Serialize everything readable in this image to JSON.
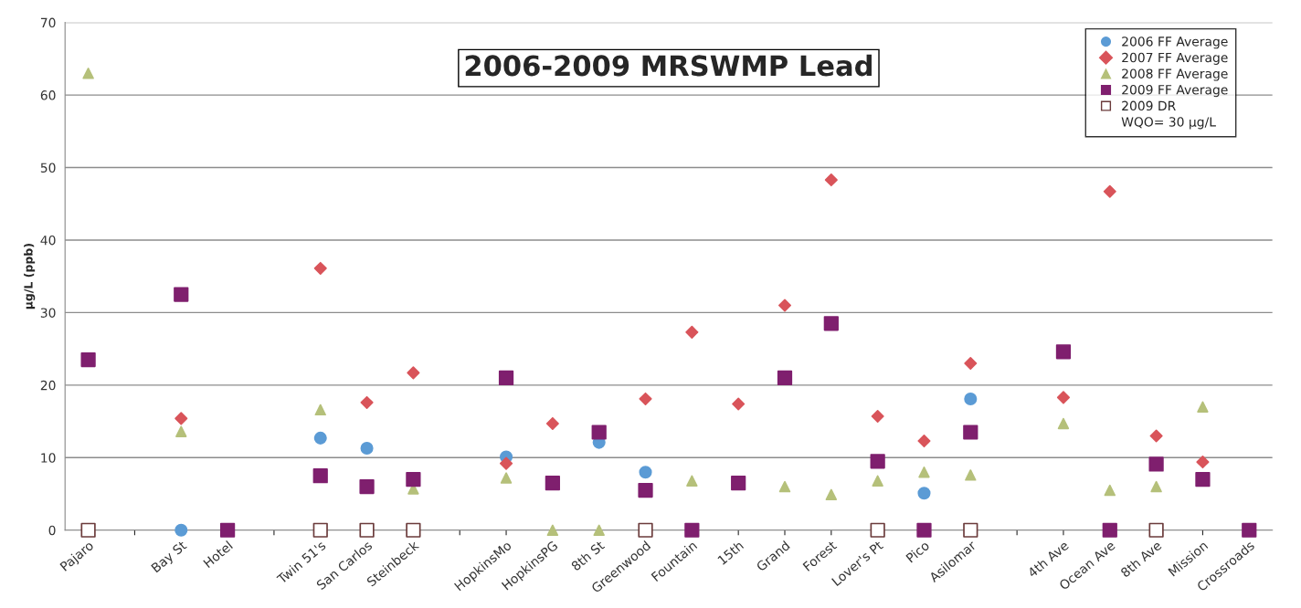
{
  "chart_data": {
    "type": "scatter",
    "title": "2006-2009 MRSWMP Lead",
    "ylabel": "µg/L (ppb)",
    "categories": [
      "Pajaro",
      null,
      "Bay St",
      "Hotel",
      null,
      "Twin 51's",
      "San Carlos",
      "Steinbeck",
      null,
      "HopkinsMo",
      "HopkinsPG",
      "8th St",
      "Greenwood",
      "Fountain",
      "15th",
      "Grand",
      "Forest",
      "Lover's Pt",
      "Pico",
      "Asilomar",
      null,
      "4th Ave",
      "Ocean Ave",
      "8th Ave",
      "Mission",
      "Crossroads"
    ],
    "series": [
      {
        "name": "2006 FF Average",
        "color": "#5b9bd5",
        "marker": "circle",
        "values": [
          null,
          null,
          0,
          null,
          null,
          12.7,
          11.3,
          null,
          null,
          10.1,
          null,
          12.1,
          8.0,
          null,
          null,
          null,
          null,
          null,
          5.1,
          18.1,
          null,
          null,
          null,
          null,
          null,
          null
        ]
      },
      {
        "name": "2007 FF Average",
        "color": "#d9545a",
        "marker": "diamond",
        "values": [
          null,
          null,
          15.4,
          null,
          null,
          36.1,
          17.6,
          21.7,
          null,
          9.2,
          14.7,
          null,
          18.1,
          27.3,
          17.4,
          31.0,
          48.3,
          15.7,
          12.3,
          23.0,
          null,
          18.3,
          46.7,
          13.0,
          9.4,
          null
        ]
      },
      {
        "name": "2008 FF Average",
        "color": "#b5c07a",
        "marker": "triangle",
        "values": [
          63.0,
          null,
          13.6,
          null,
          null,
          16.6,
          null,
          5.7,
          null,
          7.2,
          0,
          0,
          null,
          6.8,
          null,
          6.0,
          4.9,
          6.8,
          8.0,
          7.6,
          null,
          14.7,
          5.5,
          6.0,
          17.0,
          null
        ]
      },
      {
        "name": "2009 FF Average",
        "color": "#7f1f6e",
        "marker": "square",
        "values": [
          23.5,
          null,
          32.5,
          0,
          null,
          7.5,
          6.0,
          7.0,
          null,
          21.0,
          6.5,
          13.5,
          5.5,
          0,
          6.5,
          21.0,
          28.5,
          9.5,
          0,
          13.5,
          null,
          24.6,
          0,
          9.1,
          7.0,
          0
        ]
      },
      {
        "name": "2009 DR",
        "color": "#ffffff",
        "marker": "square",
        "values": [
          0,
          null,
          null,
          null,
          null,
          0,
          0,
          0,
          null,
          null,
          null,
          null,
          0,
          null,
          null,
          null,
          null,
          0,
          null,
          0,
          null,
          null,
          null,
          0,
          null,
          null
        ]
      }
    ],
    "annotations": [
      "WQO= 30 µg/L"
    ],
    "ylim": [
      0,
      70
    ],
    "yticks": [
      0,
      10,
      20,
      30,
      40,
      50,
      60,
      70
    ],
    "grid": "y",
    "legend": "top right"
  }
}
